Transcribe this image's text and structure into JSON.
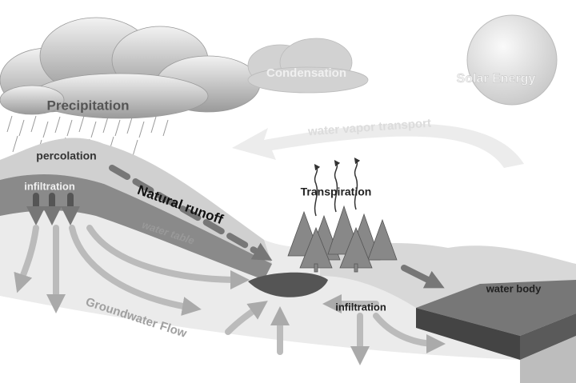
{
  "labels": {
    "precipitation": "Precipitation",
    "condensation": "Condensation",
    "solar_energy": "Solar Energy",
    "water_vapor_transport": "water vapor transport",
    "percolation": "percolation",
    "infiltration_upper": "infiltration",
    "natural_runoff": "Natural runoff",
    "transpiration": "Transpiration",
    "water_table": "water table",
    "water_body": "water body",
    "infiltration_lower": "infiltration",
    "groundwater_flow": "Groundwater Flow"
  }
}
